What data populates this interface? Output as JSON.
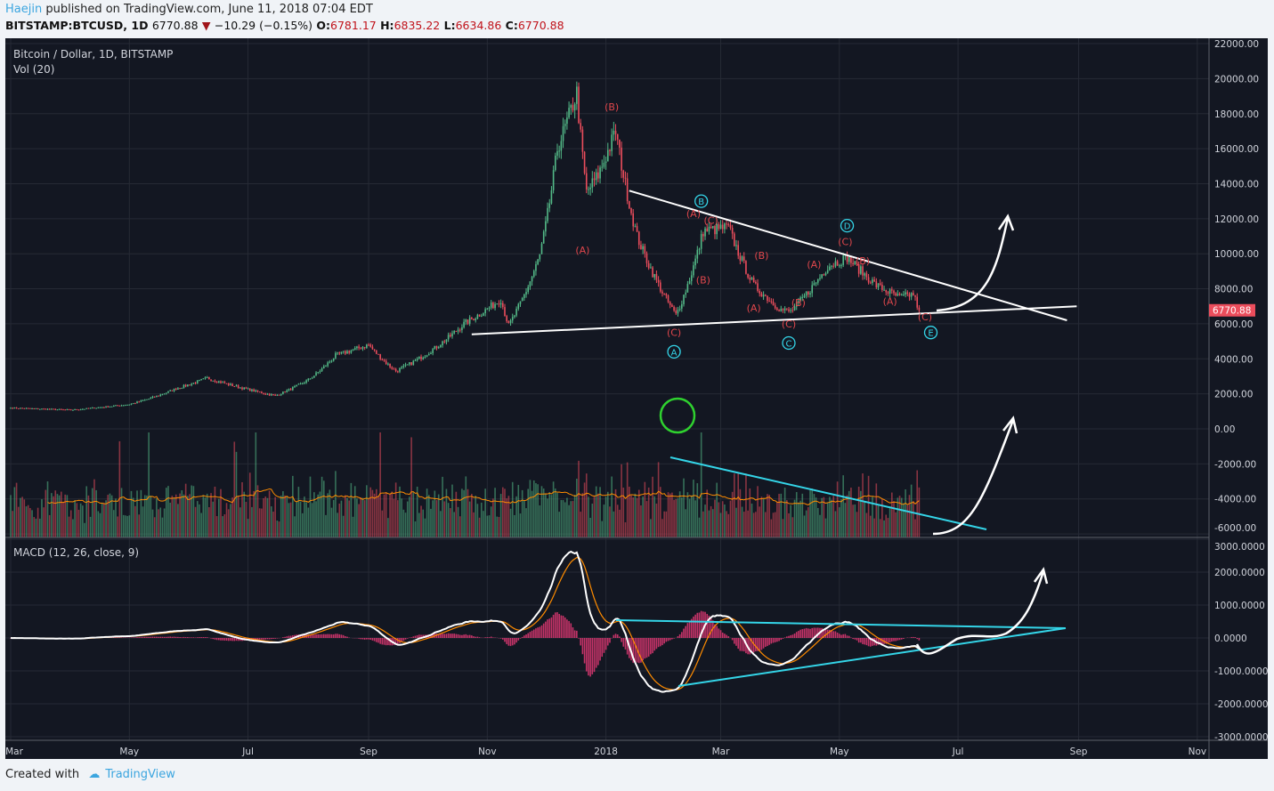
{
  "header": {
    "author": "Haejin",
    "published": "published on TradingView.com, June 11, 2018 07:04 EDT",
    "symbol": "BITSTAMP:BTCUSD, 1D",
    "last": "6770.88",
    "change": "−10.29 (−0.15%)",
    "o_label": "O:",
    "o": "6781.17",
    "h_label": "H:",
    "h": "6835.22",
    "l_label": "L:",
    "l": "6634.86",
    "c_label": "C:",
    "c": "6770.88"
  },
  "legend": {
    "title": "Bitcoin / Dollar, 1D, BITSTAMP",
    "vol": "Vol (20)",
    "macd": "MACD (12, 26, close, 9)"
  },
  "price_tag": "6770.88",
  "footer": {
    "created": "Created with",
    "brand": "TradingView"
  },
  "colors": {
    "up": "#53b987",
    "down": "#eb4d5c",
    "bg": "#131722",
    "wave": "#e0474c",
    "cyan": "#34d5e8",
    "macd": "#ffffff",
    "signal": "#ff8c00"
  },
  "chart_data": {
    "type": "candlestick",
    "title": "Bitcoin / Dollar, 1D, BITSTAMP",
    "price_axis": {
      "ticks": [
        "22000.00",
        "20000.00",
        "18000.00",
        "16000.00",
        "14000.00",
        "12000.00",
        "10000.00",
        "8000.00",
        "6000.00",
        "4000.00",
        "2000.00",
        "0.00",
        "-2000.00",
        "-4000.00",
        "-6000.00"
      ],
      "range": [
        -6000,
        22000
      ]
    },
    "macd_axis": {
      "ticks": [
        "3000.0000",
        "2000.0000",
        "1000.0000",
        "0.0000",
        "-1000.0000",
        "-2000.0000",
        "-3000.0000"
      ],
      "range": [
        -3000,
        3000
      ]
    },
    "time_axis": [
      {
        "label": "Mar",
        "date": "2017-03-01"
      },
      {
        "label": "May",
        "date": "2017-05-01"
      },
      {
        "label": "Jul",
        "date": "2017-07-01"
      },
      {
        "label": "Sep",
        "date": "2017-09-01"
      },
      {
        "label": "Nov",
        "date": "2017-11-01"
      },
      {
        "label": "2018",
        "date": "2018-01-01"
      },
      {
        "label": "Mar",
        "date": "2018-03-01"
      },
      {
        "label": "May",
        "date": "2018-05-01"
      },
      {
        "label": "Jul",
        "date": "2018-07-01"
      },
      {
        "label": "Sep",
        "date": "2018-09-01"
      },
      {
        "label": "Nov",
        "date": "2018-11-01"
      }
    ],
    "price_anchors": [
      [
        "2017-03-01",
        1200
      ],
      [
        "2017-04-01",
        1080
      ],
      [
        "2017-05-01",
        1400
      ],
      [
        "2017-05-25",
        2300
      ],
      [
        "2017-06-10",
        2900
      ],
      [
        "2017-07-15",
        1900
      ],
      [
        "2017-08-01",
        2800
      ],
      [
        "2017-08-15",
        4200
      ],
      [
        "2017-09-01",
        4800
      ],
      [
        "2017-09-15",
        3300
      ],
      [
        "2017-10-01",
        4300
      ],
      [
        "2017-10-20",
        6000
      ],
      [
        "2017-11-08",
        7400
      ],
      [
        "2017-11-12",
        5900
      ],
      [
        "2017-11-28",
        9900
      ],
      [
        "2017-12-07",
        16000
      ],
      [
        "2017-12-17",
        19200
      ],
      [
        "2017-12-22",
        13500
      ],
      [
        "2017-12-28",
        14500
      ],
      [
        "2018-01-06",
        17000
      ],
      [
        "2018-01-17",
        11000
      ],
      [
        "2018-02-06",
        6500
      ],
      [
        "2018-02-20",
        11300
      ],
      [
        "2018-03-05",
        11500
      ],
      [
        "2018-03-18",
        8200
      ],
      [
        "2018-04-01",
        6800
      ],
      [
        "2018-04-06",
        6700
      ],
      [
        "2018-04-25",
        9300
      ],
      [
        "2018-05-05",
        9800
      ],
      [
        "2018-05-20",
        8200
      ],
      [
        "2018-06-01",
        7500
      ],
      [
        "2018-06-08",
        7700
      ],
      [
        "2018-06-11",
        6770.88
      ]
    ],
    "wave_labels": [
      [
        "(B)",
        "2018-01-04",
        18200
      ],
      [
        "(A)",
        "2017-12-20",
        10000
      ],
      [
        "(A)",
        "2018-02-15",
        12100
      ],
      [
        "(C)",
        "2018-02-24",
        11700
      ],
      [
        "(B)",
        "2018-02-20",
        8300
      ],
      [
        "(B)",
        "2018-03-22",
        9700
      ],
      [
        "(A)",
        "2018-03-18",
        6700
      ],
      [
        "(B)",
        "2018-04-10",
        7000
      ],
      [
        "(C)",
        "2018-04-05",
        5800
      ],
      [
        "(A)",
        "2018-04-18",
        9200
      ],
      [
        "(C)",
        "2018-05-04",
        10500
      ],
      [
        "(B)",
        "2018-05-13",
        9400
      ],
      [
        "(A)",
        "2018-05-27",
        7100
      ],
      [
        "(C)",
        "2018-02-05",
        5300
      ],
      [
        "(C)",
        "2018-06-14",
        6200
      ]
    ],
    "circled_labels": [
      [
        "A",
        "2018-02-05",
        4200
      ],
      [
        "B",
        "2018-02-19",
        12800
      ],
      [
        "C",
        "2018-04-05",
        4700
      ],
      [
        "D",
        "2018-05-05",
        11400
      ],
      [
        "E",
        "2018-06-17",
        5300
      ]
    ],
    "trendlines": [
      [
        [
          "2018-01-13",
          13600
        ],
        [
          "2018-08-26",
          6200
        ]
      ],
      [
        [
          "2017-10-24",
          5400
        ],
        [
          "2018-08-31",
          7000
        ]
      ]
    ]
  }
}
